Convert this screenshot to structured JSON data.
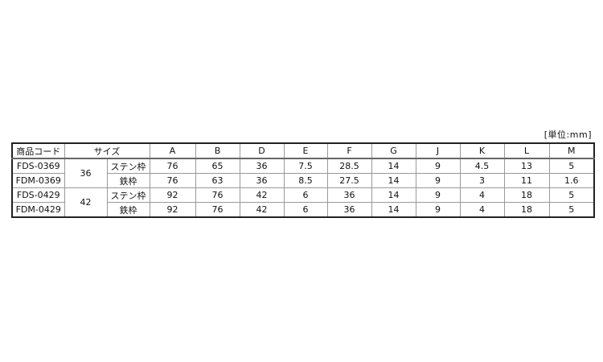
{
  "unit_label": "[単位:mm]",
  "headers": [
    "商品コード",
    "サイズ",
    "A",
    "B",
    "D",
    "E",
    "F",
    "G",
    "J",
    "K",
    "L",
    "M"
  ],
  "rows": [
    {
      "code": "FDS-0369",
      "size": "36",
      "frame": "ステン枠",
      "values": [
        "76",
        "65",
        "36",
        "7.5",
        "28.5",
        "14",
        "9",
        "4.5",
        "13",
        "5"
      ]
    },
    {
      "code": "FDM-0369",
      "size": "36",
      "frame": "鉄枠",
      "values": [
        "76",
        "63",
        "36",
        "8.5",
        "27.5",
        "14",
        "9",
        "3",
        "11",
        "1.6"
      ]
    },
    {
      "code": "FDS-0429",
      "size": "42",
      "frame": "ステン枠",
      "values": [
        "92",
        "76",
        "42",
        "6",
        "36",
        "14",
        "9",
        "4",
        "18",
        "5"
      ]
    },
    {
      "code": "FDM-0429",
      "size": "42",
      "frame": "鉄枠",
      "values": [
        "92",
        "76",
        "42",
        "6",
        "36",
        "14",
        "9",
        "4",
        "18",
        "5"
      ]
    }
  ]
}
